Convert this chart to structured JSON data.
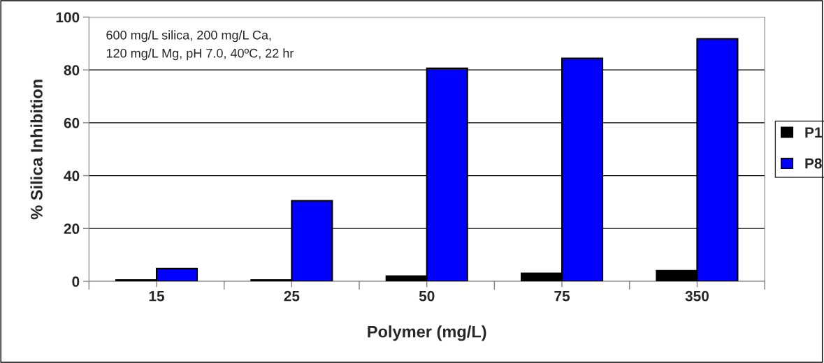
{
  "chart_data": {
    "type": "bar",
    "xlabel": "Polymer (mg/L)",
    "ylabel": "% Silica Inhibition",
    "categories": [
      "15",
      "25",
      "50",
      "75",
      "350"
    ],
    "series": [
      {
        "name": "P1",
        "color": "#000000",
        "values": [
          0.5,
          0.5,
          2,
          3,
          4
        ]
      },
      {
        "name": "P8",
        "color": "#0000ff",
        "values": [
          4.8,
          30.5,
          80.6,
          84.4,
          91.8
        ]
      }
    ],
    "ylim": [
      0,
      100
    ],
    "yticks": [
      0,
      20,
      40,
      60,
      80,
      100
    ],
    "grid": "y",
    "legend": "right",
    "annotations": [
      "600 mg/L silica, 200 mg/L Ca,\n120 mg/L Mg, pH 7.0, 40ºC, 22 hr"
    ]
  }
}
